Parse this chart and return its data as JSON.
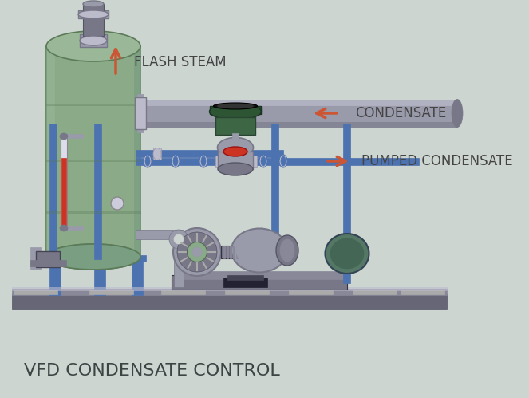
{
  "bg_color": "#cdd5d0",
  "title": "VFD CONDENSATE CONTROL",
  "title_color": "#3d4444",
  "title_fontsize": 16,
  "label_flash_steam": "FLASH STEAM",
  "label_condensate": "CONDENSATE",
  "label_pumped": "PUMPED CONDENSATE",
  "label_color": "#444444",
  "label_fontsize": 11,
  "arrow_color": "#cc5533",
  "tank_green": "#7a9e82",
  "tank_green_mid": "#8aaa88",
  "tank_green_light": "#9ab898",
  "tank_dark_edge": "#5a7a58",
  "pipe_blue": "#4d72b0",
  "pipe_gray_dark": "#777788",
  "pipe_gray_mid": "#999aaa",
  "pipe_gray_light": "#bbbbcc",
  "base_dark": "#666677",
  "base_mid": "#888899",
  "base_light": "#aaaaaa"
}
